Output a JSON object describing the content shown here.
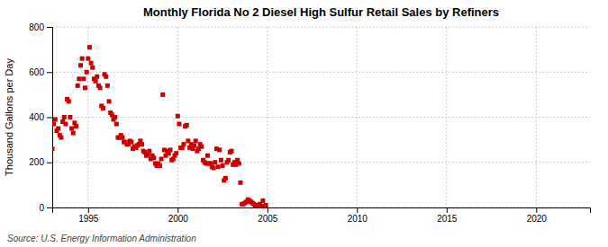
{
  "chart_data": {
    "type": "scatter",
    "title": "Monthly Florida No 2 Diesel High Sulfur Retail Sales by Refiners",
    "y_label": "Thousand Gallons per Day",
    "annotations": [
      "Source: U.S. Energy Information Administration"
    ],
    "color": "#cc0000",
    "marker": "square",
    "grid": true,
    "xlim": [
      1993.0,
      2023.0
    ],
    "ylim": [
      0,
      800
    ],
    "xticks": [
      1995,
      2000,
      2005,
      2010,
      2015,
      2020
    ],
    "yticks": [
      0,
      200,
      400,
      600,
      800
    ],
    "x": [
      1993.0,
      1993.083,
      1993.167,
      1993.25,
      1993.333,
      1993.417,
      1993.5,
      1993.583,
      1993.667,
      1993.75,
      1993.833,
      1993.917,
      1994.0,
      1994.083,
      1994.167,
      1994.25,
      1994.333,
      1994.417,
      1994.5,
      1994.583,
      1994.667,
      1994.75,
      1994.833,
      1994.917,
      1995.0,
      1995.083,
      1995.167,
      1995.25,
      1995.333,
      1995.417,
      1995.5,
      1995.583,
      1995.667,
      1995.75,
      1995.833,
      1995.917,
      1996.0,
      1996.083,
      1996.167,
      1996.25,
      1996.333,
      1996.417,
      1996.5,
      1996.583,
      1996.667,
      1996.75,
      1996.833,
      1996.917,
      1997.0,
      1997.083,
      1997.167,
      1997.25,
      1997.333,
      1997.417,
      1997.5,
      1997.583,
      1997.667,
      1997.75,
      1997.833,
      1997.917,
      1998.0,
      1998.083,
      1998.167,
      1998.25,
      1998.333,
      1998.417,
      1998.5,
      1998.583,
      1998.667,
      1998.75,
      1998.833,
      1998.917,
      1999.0,
      1999.083,
      1999.167,
      1999.25,
      1999.333,
      1999.417,
      1999.5,
      1999.583,
      1999.667,
      1999.75,
      1999.833,
      1999.917,
      2000.0,
      2000.083,
      2000.167,
      2000.25,
      2000.333,
      2000.417,
      2000.5,
      2000.583,
      2000.667,
      2000.75,
      2000.833,
      2000.917,
      2001.0,
      2001.083,
      2001.167,
      2001.25,
      2001.333,
      2001.417,
      2001.5,
      2001.583,
      2001.667,
      2001.75,
      2001.833,
      2001.917,
      2002.0,
      2002.083,
      2002.167,
      2002.25,
      2002.333,
      2002.417,
      2002.5,
      2002.583,
      2002.667,
      2002.75,
      2002.833,
      2002.917,
      2003.0,
      2003.083,
      2003.167,
      2003.25,
      2003.333,
      2003.417,
      2003.5,
      2003.583,
      2003.667,
      2003.75,
      2003.833,
      2003.917,
      2004.0,
      2004.083,
      2004.167,
      2004.25,
      2004.333,
      2004.417,
      2004.5,
      2004.583,
      2004.667,
      2004.75,
      2004.833,
      2004.917
    ],
    "values": [
      260,
      370,
      390,
      340,
      350,
      320,
      310,
      380,
      400,
      370,
      480,
      470,
      400,
      350,
      330,
      375,
      360,
      540,
      570,
      630,
      660,
      570,
      530,
      600,
      660,
      710,
      640,
      620,
      570,
      560,
      580,
      540,
      530,
      450,
      440,
      590,
      580,
      540,
      470,
      420,
      410,
      390,
      400,
      370,
      310,
      310,
      320,
      310,
      290,
      290,
      280,
      280,
      295,
      290,
      260,
      270,
      265,
      275,
      280,
      295,
      280,
      250,
      245,
      230,
      235,
      250,
      215,
      230,
      220,
      195,
      185,
      195,
      185,
      215,
      500,
      255,
      230,
      250,
      240,
      255,
      210,
      215,
      230,
      240,
      405,
      370,
      265,
      265,
      280,
      360,
      365,
      295,
      265,
      280,
      260,
      275,
      295,
      250,
      260,
      280,
      270,
      210,
      200,
      195,
      230,
      195,
      195,
      180,
      175,
      200,
      260,
      180,
      255,
      210,
      185,
      120,
      130,
      200,
      210,
      245,
      250,
      190,
      200,
      190,
      210,
      195,
      110,
      15,
      15,
      20,
      25,
      35,
      30,
      25,
      20,
      15,
      10,
      10,
      10,
      15,
      5,
      30,
      5,
      10
    ]
  }
}
